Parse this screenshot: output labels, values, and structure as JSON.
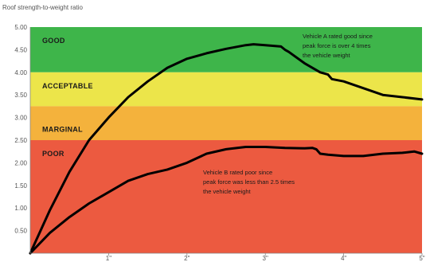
{
  "chart_data": {
    "type": "line",
    "ylabel": "Roof strength-to-weight ratio",
    "xlabel": "",
    "xlim": [
      0,
      5
    ],
    "ylim": [
      0,
      5
    ],
    "x_ticks": [
      "1\"",
      "2\"",
      "3\"",
      "4\"",
      "5\""
    ],
    "y_ticks": [
      "0.50",
      "1.00",
      "1.50",
      "2.00",
      "2.50",
      "3.00",
      "3.50",
      "4.00",
      "4.50",
      "5.00"
    ],
    "grid": false,
    "legend": "none",
    "bands": [
      {
        "label": "GOOD",
        "from": 4.0,
        "to": 5.0,
        "color": "#3eb54a"
      },
      {
        "label": "ACCEPTABLE",
        "from": 3.25,
        "to": 4.0,
        "color": "#ece54a"
      },
      {
        "label": "MARGINAL",
        "from": 2.5,
        "to": 3.25,
        "color": "#f4b23c"
      },
      {
        "label": "POOR",
        "from": 0.0,
        "to": 2.5,
        "color": "#ec5a40"
      }
    ],
    "series": [
      {
        "x": [
          0,
          0.25,
          0.5,
          0.75,
          1.0,
          1.25,
          1.5,
          1.75,
          2.0,
          2.25,
          2.5,
          2.75,
          2.85,
          3.0,
          3.2,
          3.25,
          3.3,
          3.5,
          3.7,
          3.8,
          3.85,
          4.0,
          4.25,
          4.5,
          4.75,
          5.0
        ],
        "y": [
          0,
          0.95,
          1.8,
          2.5,
          3.0,
          3.45,
          3.8,
          4.1,
          4.3,
          4.42,
          4.52,
          4.6,
          4.62,
          4.6,
          4.57,
          4.5,
          4.45,
          4.2,
          4.0,
          3.95,
          3.85,
          3.8,
          3.65,
          3.5,
          3.45,
          3.4
        ],
        "color": "#000000"
      },
      {
        "x": [
          0,
          0.25,
          0.5,
          0.75,
          1.0,
          1.25,
          1.5,
          1.75,
          2.0,
          2.25,
          2.5,
          2.75,
          3.0,
          3.25,
          3.5,
          3.6,
          3.65,
          3.7,
          3.8,
          4.0,
          4.25,
          4.5,
          4.75,
          4.9,
          5.0
        ],
        "y": [
          0,
          0.45,
          0.8,
          1.1,
          1.35,
          1.6,
          1.75,
          1.85,
          2.0,
          2.2,
          2.3,
          2.35,
          2.35,
          2.33,
          2.32,
          2.33,
          2.3,
          2.2,
          2.18,
          2.15,
          2.15,
          2.2,
          2.22,
          2.25,
          2.2
        ],
        "color": "#000000"
      }
    ],
    "annotations": [
      {
        "lines": [
          "Vehicle A rated good since",
          "peak force is over 4 times",
          "the vehicle weight"
        ]
      },
      {
        "lines": [
          "Vehicle B rated poor since",
          "peak force was less than 2.5 times",
          "the vehicle weight"
        ]
      }
    ]
  }
}
